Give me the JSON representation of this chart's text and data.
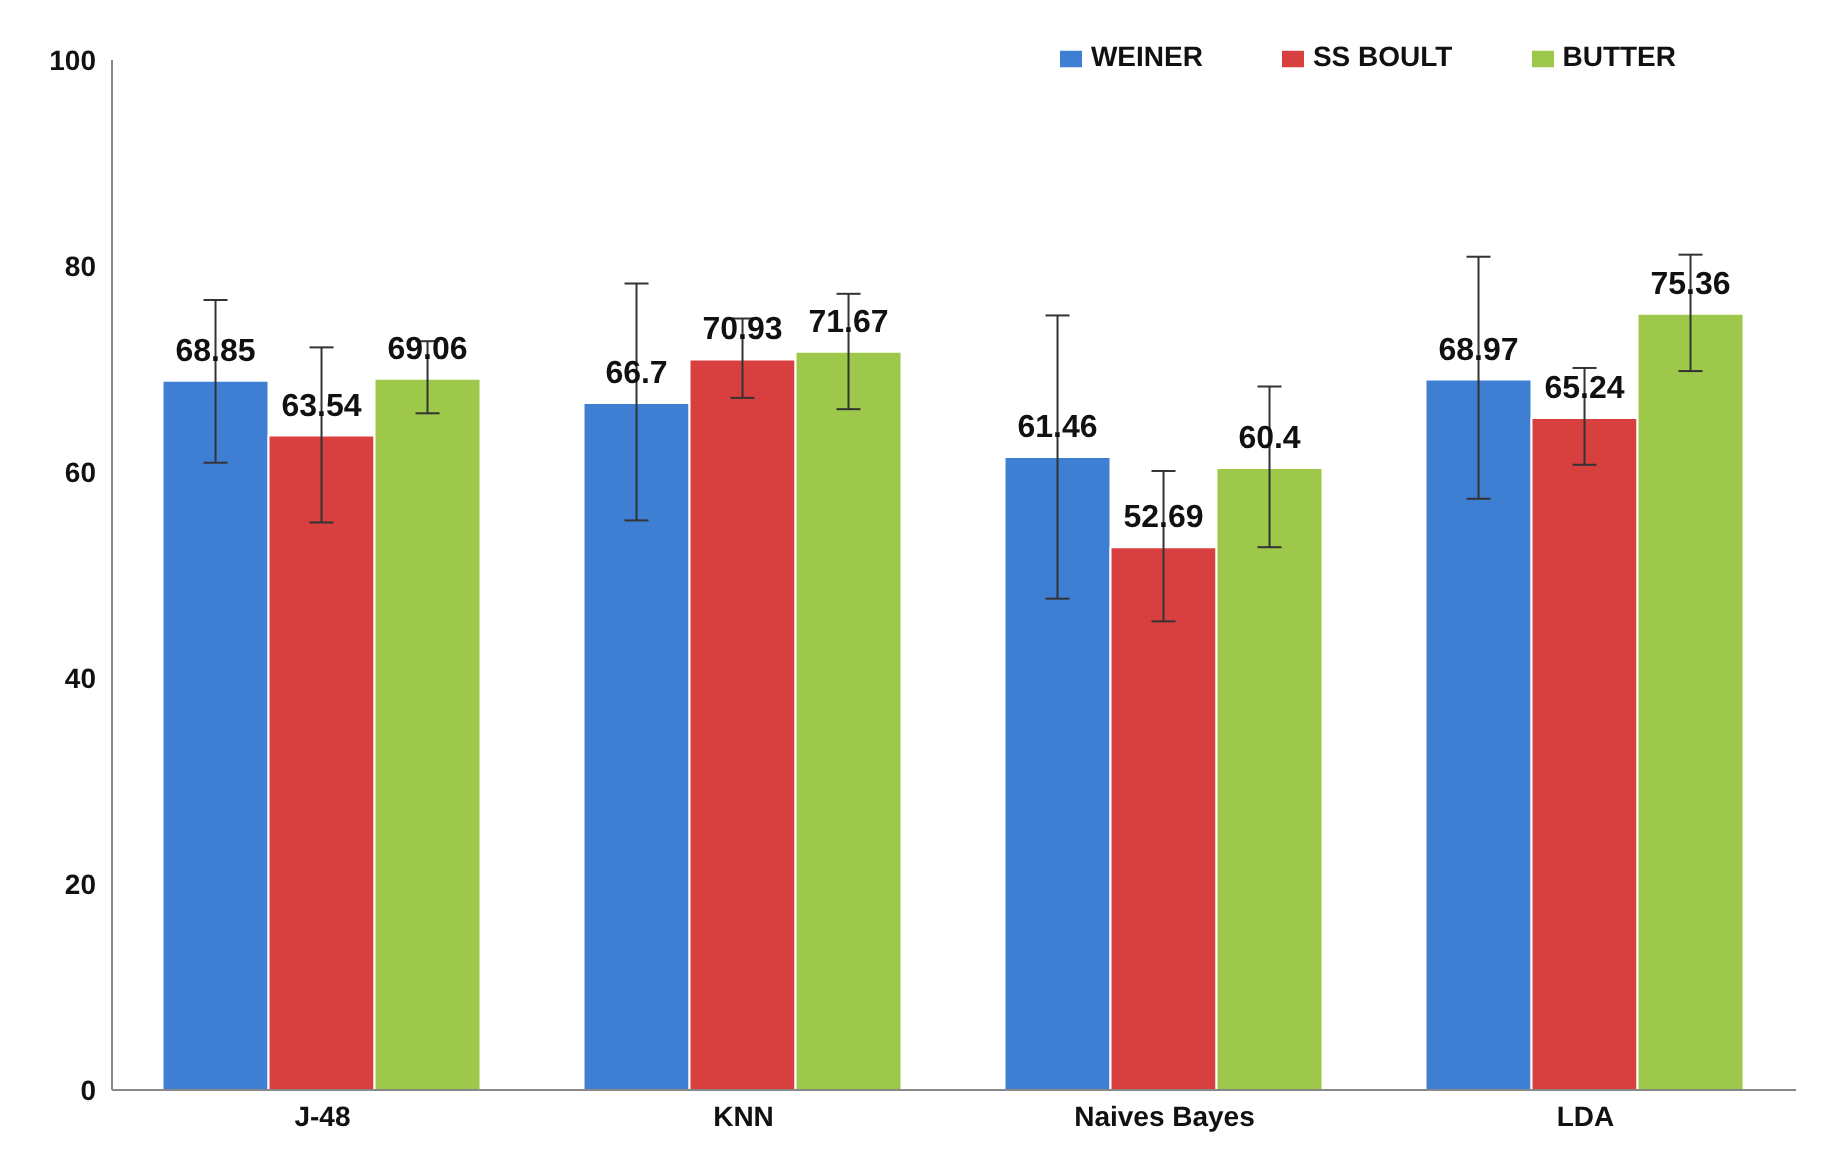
{
  "chart_data": {
    "type": "bar",
    "categories": [
      "J-48",
      "KNN",
      "Naives Bayes",
      "LDA"
    ],
    "series": [
      {
        "name": "WEINER",
        "color": "#3e7fd4",
        "values": [
          68.85,
          66.7,
          61.46,
          68.97
        ],
        "errors": [
          [
            60.9,
            76.7
          ],
          [
            55.3,
            78.3
          ],
          [
            47.7,
            75.2
          ],
          [
            57.4,
            80.9
          ]
        ]
      },
      {
        "name": "SS BOULT",
        "color": "#d84040",
        "values": [
          63.54,
          70.93,
          52.69,
          65.24
        ],
        "errors": [
          [
            55.1,
            72.1
          ],
          [
            67.2,
            74.9
          ],
          [
            45.5,
            60.1
          ],
          [
            60.7,
            70.1
          ]
        ]
      },
      {
        "name": "BUTTER",
        "color": "#9dc84a",
        "values": [
          69.06,
          71.67,
          60.4,
          75.36
        ],
        "errors": [
          [
            65.7,
            72.7
          ],
          [
            66.1,
            77.3
          ],
          [
            52.7,
            68.3
          ],
          [
            69.8,
            81.1
          ]
        ]
      }
    ],
    "ylim": [
      0,
      100
    ],
    "yticks": [
      0,
      20,
      40,
      60,
      80,
      100
    ],
    "grid": false,
    "legend": "top right",
    "data_labels": true
  }
}
